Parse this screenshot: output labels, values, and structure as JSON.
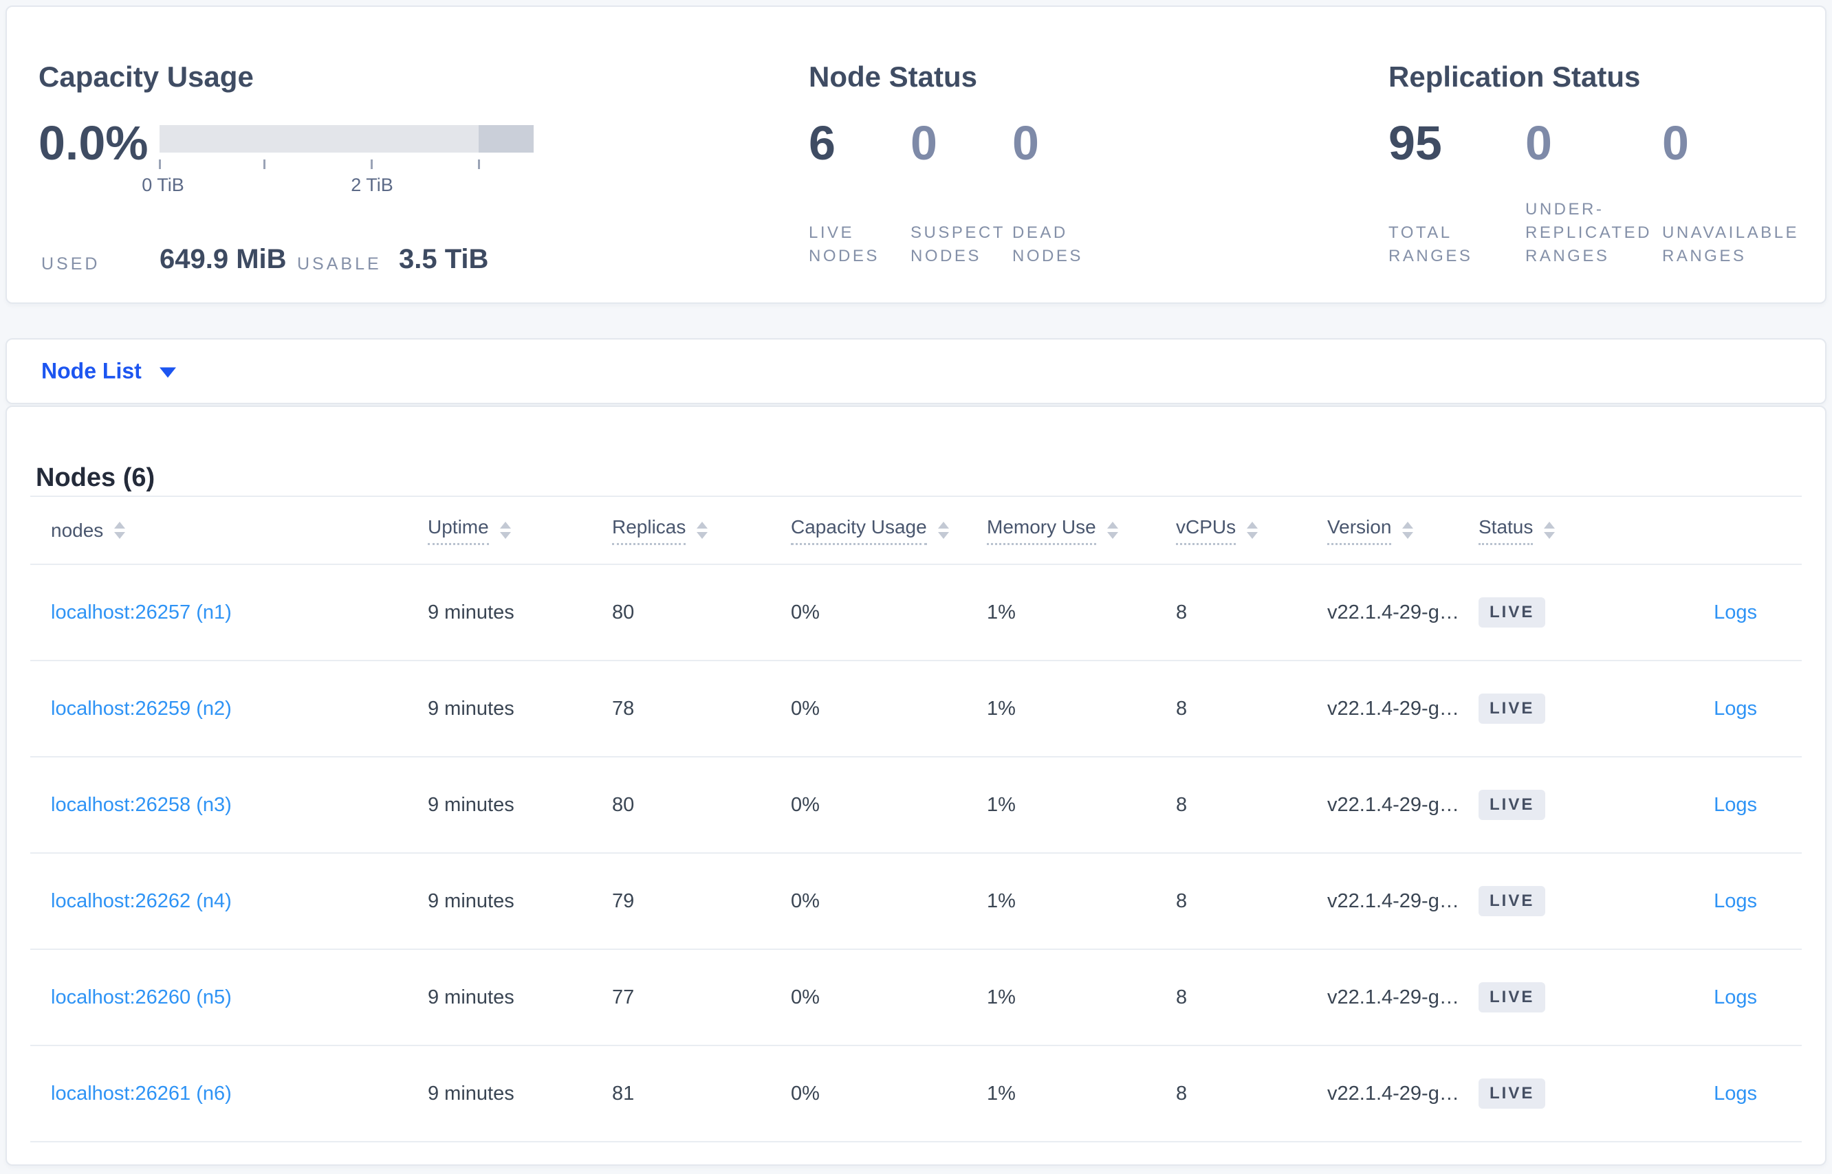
{
  "summary": {
    "capacity": {
      "title": "Capacity Usage",
      "percent": "0.0%",
      "tick_labels": [
        "0 TiB",
        "2 TiB"
      ],
      "used_label": "USED",
      "used_value": "649.9 MiB",
      "usable_label": "USABLE",
      "usable_value": "3.5 TiB"
    },
    "node_status": {
      "title": "Node Status",
      "stats": [
        {
          "value": "6",
          "label": "LIVE NODES"
        },
        {
          "value": "0",
          "label": "SUSPECT NODES"
        },
        {
          "value": "0",
          "label": "DEAD NODES"
        }
      ]
    },
    "replication": {
      "title": "Replication Status",
      "stats": [
        {
          "value": "95",
          "label": "TOTAL RANGES"
        },
        {
          "value": "0",
          "label": "UNDER-REPLICATED RANGES"
        },
        {
          "value": "0",
          "label": "UNAVAILABLE RANGES"
        }
      ]
    }
  },
  "view_selector": {
    "label": "Node List"
  },
  "table": {
    "title": "Nodes (6)",
    "columns": [
      {
        "label": "nodes"
      },
      {
        "label": "Uptime"
      },
      {
        "label": "Replicas"
      },
      {
        "label": "Capacity Usage"
      },
      {
        "label": "Memory Use"
      },
      {
        "label": "vCPUs"
      },
      {
        "label": "Version"
      },
      {
        "label": "Status"
      }
    ],
    "rows": [
      {
        "address": "localhost:26257 (n1)",
        "uptime": "9 minutes",
        "replicas": "80",
        "capacity_usage": "0%",
        "memory_use": "1%",
        "vcpus": "8",
        "version": "v22.1.4-29-g…",
        "status": "LIVE",
        "logs": "Logs"
      },
      {
        "address": "localhost:26259 (n2)",
        "uptime": "9 minutes",
        "replicas": "78",
        "capacity_usage": "0%",
        "memory_use": "1%",
        "vcpus": "8",
        "version": "v22.1.4-29-g…",
        "status": "LIVE",
        "logs": "Logs"
      },
      {
        "address": "localhost:26258 (n3)",
        "uptime": "9 minutes",
        "replicas": "80",
        "capacity_usage": "0%",
        "memory_use": "1%",
        "vcpus": "8",
        "version": "v22.1.4-29-g…",
        "status": "LIVE",
        "logs": "Logs"
      },
      {
        "address": "localhost:26262 (n4)",
        "uptime": "9 minutes",
        "replicas": "79",
        "capacity_usage": "0%",
        "memory_use": "1%",
        "vcpus": "8",
        "version": "v22.1.4-29-g…",
        "status": "LIVE",
        "logs": "Logs"
      },
      {
        "address": "localhost:26260 (n5)",
        "uptime": "9 minutes",
        "replicas": "77",
        "capacity_usage": "0%",
        "memory_use": "1%",
        "vcpus": "8",
        "version": "v22.1.4-29-g…",
        "status": "LIVE",
        "logs": "Logs"
      },
      {
        "address": "localhost:26261 (n6)",
        "uptime": "9 minutes",
        "replicas": "81",
        "capacity_usage": "0%",
        "memory_use": "1%",
        "vcpus": "8",
        "version": "v22.1.4-29-g…",
        "status": "LIVE",
        "logs": "Logs"
      }
    ]
  },
  "colors": {
    "accent_blue": "#1c55f0",
    "link_blue": "#2e93f5",
    "badge_bg": "#e8ebf2",
    "badge_text": "#454f63",
    "capacity_bar_light": "#e3e5ea",
    "capacity_bar_dark": "#cacfd9",
    "page_background": "#f5f7fa"
  }
}
